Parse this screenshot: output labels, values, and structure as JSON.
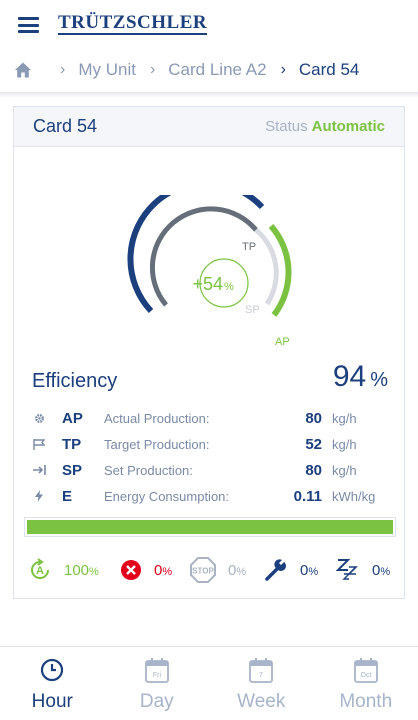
{
  "header": {
    "logo": "TRÜTZSCHLER"
  },
  "breadcrumb": {
    "items": [
      "My Unit",
      "Card Line A2"
    ],
    "current": "Card 54"
  },
  "card": {
    "title": "Card 54",
    "status_label": "Status",
    "status_value": "Automatic",
    "gauge": {
      "center_value": "+54",
      "center_unit": "%",
      "labels": {
        "tp": "TP",
        "sp": "SP",
        "ap": "AP"
      }
    },
    "efficiency": {
      "label": "Efficiency",
      "value": "94",
      "unit": "%"
    },
    "metrics": [
      {
        "icon": "gear-icon",
        "abbr": "AP",
        "label": "Actual Production:",
        "value": "80",
        "unit": "kg/h"
      },
      {
        "icon": "flag-icon",
        "abbr": "TP",
        "label": "Target Production:",
        "value": "52",
        "unit": "kg/h"
      },
      {
        "icon": "arrow-to-line-icon",
        "abbr": "SP",
        "label": "Set Production:",
        "value": "80",
        "unit": "kg/h"
      },
      {
        "icon": "lightning-icon",
        "abbr": "E",
        "label": "Energy Consumption:",
        "value": "0.11",
        "unit": "kWh/kg"
      }
    ],
    "progress": 1.0,
    "stats": [
      {
        "icon": "automatic-icon",
        "value": "100",
        "unit": "%",
        "color": "#7cc242"
      },
      {
        "icon": "error-icon",
        "value": "0",
        "unit": "%",
        "color": "#e3001b"
      },
      {
        "icon": "stop-icon",
        "value": "0",
        "unit": "%",
        "color": "#a9b3c3"
      },
      {
        "icon": "wrench-icon",
        "value": "0",
        "unit": "%",
        "color": "#1c3f7d"
      },
      {
        "icon": "sleep-icon",
        "value": "0",
        "unit": "%",
        "color": "#1c3f7d"
      }
    ]
  },
  "tabs": [
    {
      "label": "Hour",
      "icon": "clock-icon",
      "active": true
    },
    {
      "label": "Day",
      "icon": "calendar-day-icon",
      "text": "Fri"
    },
    {
      "label": "Week",
      "icon": "calendar-week-icon",
      "text": "7"
    },
    {
      "label": "Month",
      "icon": "calendar-month-icon",
      "text": "Oct"
    }
  ],
  "colors": {
    "brand": "#1c3f7d",
    "accent": "#7cc242",
    "muted": "#a7b4c9",
    "error": "#e3001b"
  }
}
